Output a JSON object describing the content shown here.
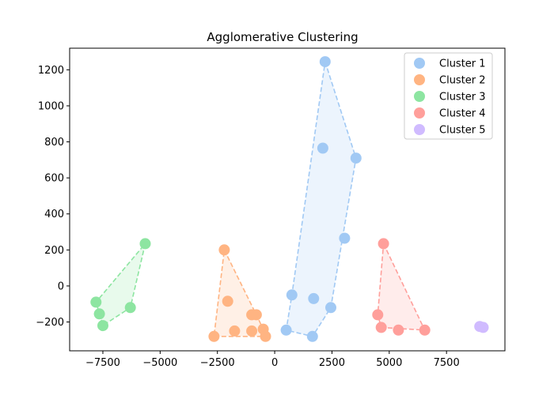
{
  "chart_data": {
    "type": "scatter",
    "title": "Agglomerative Clustering",
    "xlabel": "",
    "ylabel": "",
    "xlim": [
      -8950,
      10050
    ],
    "ylim": [
      -360,
      1320
    ],
    "xticks": [
      -7500,
      -5000,
      -2500,
      0,
      2500,
      5000,
      7500
    ],
    "yticks": [
      -200,
      0,
      200,
      400,
      600,
      800,
      1000,
      1200
    ],
    "grid": false,
    "legend_position": "top-right",
    "series": [
      {
        "name": "Cluster 1",
        "color": "#a1c9f4",
        "points": [
          [
            2200,
            1245
          ],
          [
            2100,
            765
          ],
          [
            3550,
            710
          ],
          [
            3050,
            265
          ],
          [
            750,
            -50
          ],
          [
            1700,
            -70
          ],
          [
            2450,
            -120
          ],
          [
            500,
            -245
          ],
          [
            1650,
            -280
          ]
        ],
        "hull": [
          [
            2200,
            1245
          ],
          [
            3550,
            710
          ],
          [
            2450,
            -120
          ],
          [
            1650,
            -280
          ],
          [
            500,
            -245
          ],
          [
            750,
            -50
          ]
        ]
      },
      {
        "name": "Cluster 2",
        "color": "#ffb482",
        "points": [
          [
            -2200,
            200
          ],
          [
            -2050,
            -85
          ],
          [
            -1000,
            -160
          ],
          [
            -800,
            -160
          ],
          [
            -2650,
            -280
          ],
          [
            -1750,
            -250
          ],
          [
            -1000,
            -250
          ],
          [
            -500,
            -240
          ],
          [
            -400,
            -280
          ]
        ],
        "hull": [
          [
            -2200,
            200
          ],
          [
            -800,
            -160
          ],
          [
            -500,
            -240
          ],
          [
            -400,
            -280
          ],
          [
            -2650,
            -280
          ]
        ]
      },
      {
        "name": "Cluster 3",
        "color": "#8de5a1",
        "points": [
          [
            -5650,
            235
          ],
          [
            -7800,
            -90
          ],
          [
            -7650,
            -155
          ],
          [
            -6300,
            -120
          ],
          [
            -7500,
            -220
          ]
        ],
        "hull": [
          [
            -5650,
            235
          ],
          [
            -6300,
            -120
          ],
          [
            -7500,
            -220
          ],
          [
            -7800,
            -90
          ]
        ]
      },
      {
        "name": "Cluster 4",
        "color": "#ff9f9b",
        "points": [
          [
            4750,
            235
          ],
          [
            4500,
            -160
          ],
          [
            4650,
            -230
          ],
          [
            5400,
            -245
          ],
          [
            6550,
            -245
          ]
        ],
        "hull": [
          [
            4750,
            235
          ],
          [
            6550,
            -245
          ],
          [
            4650,
            -230
          ],
          [
            4500,
            -160
          ]
        ]
      },
      {
        "name": "Cluster 5",
        "color": "#d0bbff",
        "points": [
          [
            8950,
            -225
          ],
          [
            9100,
            -230
          ]
        ],
        "hull": []
      }
    ]
  }
}
